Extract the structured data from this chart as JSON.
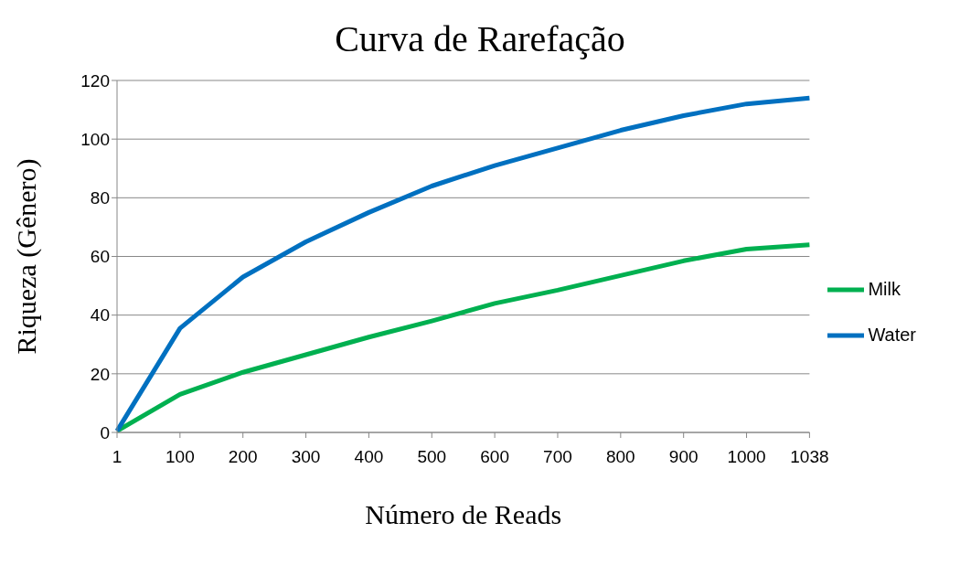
{
  "chart_data": {
    "type": "line",
    "title": "Curva de Rarefação",
    "xlabel": "Número de Reads",
    "ylabel": "Riqueza (Gênero)",
    "categories": [
      "1",
      "100",
      "200",
      "300",
      "400",
      "500",
      "600",
      "700",
      "800",
      "900",
      "1000",
      "1038"
    ],
    "series": [
      {
        "name": "Milk",
        "color": "#00b050",
        "values": [
          0.5,
          13,
          20.5,
          26.5,
          32.5,
          38,
          44,
          48.5,
          53.5,
          58.5,
          62.5,
          64
        ]
      },
      {
        "name": "Water",
        "color": "#0070c0",
        "values": [
          0.5,
          35.5,
          53,
          65,
          75,
          84,
          91,
          97,
          103,
          108,
          112,
          114
        ]
      }
    ],
    "ylim": [
      0,
      120
    ],
    "yticks": [
      0,
      20,
      40,
      60,
      80,
      100,
      120
    ],
    "grid": "y",
    "legend": "right",
    "marker": "none",
    "line_style": "solid"
  }
}
